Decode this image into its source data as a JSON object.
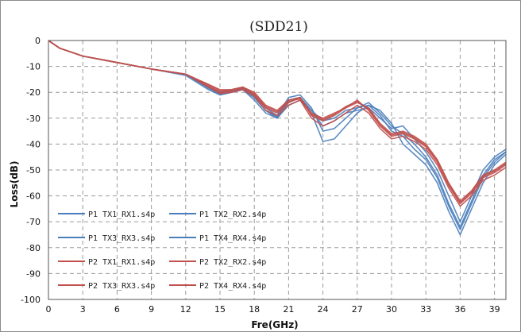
{
  "chart_data": {
    "type": "line",
    "title": "(SDD21)",
    "xlabel": "Fre(GHz)",
    "ylabel": "Loss(dB)",
    "xlim": [
      0,
      40
    ],
    "ylim": [
      -100,
      0
    ],
    "x_ticks": [
      0,
      3,
      6,
      9,
      12,
      15,
      18,
      21,
      24,
      27,
      30,
      33,
      36,
      39
    ],
    "y_ticks": [
      0,
      -10,
      -20,
      -30,
      -40,
      -50,
      -60,
      -70,
      -80,
      -90,
      -100
    ],
    "grid": true,
    "legend_position": "bottom-left",
    "series": [
      {
        "name": "P1 TX1_RX1.s4p",
        "color": "#4a7ebb",
        "x": [
          0,
          1,
          3,
          6,
          9,
          12,
          14,
          15,
          16,
          17,
          18,
          19,
          20,
          21,
          22,
          23,
          24,
          25,
          26,
          27,
          28,
          29,
          30,
          31,
          32,
          33,
          34,
          35,
          36,
          37,
          38,
          39,
          40
        ],
        "y": [
          0,
          -3,
          -6,
          -8.5,
          -11,
          -13,
          -18,
          -21,
          -20,
          -19,
          -22,
          -27,
          -30,
          -24,
          -22,
          -27,
          -33,
          -31,
          -28,
          -27,
          -26,
          -30,
          -34,
          -33,
          -38,
          -43,
          -50,
          -60,
          -70,
          -60,
          -50,
          -45,
          -42
        ]
      },
      {
        "name": "P1 TX2_RX2.s4p",
        "color": "#4a7ebb",
        "x": [
          0,
          1,
          3,
          6,
          9,
          12,
          14,
          15,
          16,
          17,
          18,
          19,
          20,
          21,
          22,
          23,
          24,
          25,
          26,
          27,
          28,
          29,
          30,
          31,
          32,
          33,
          34,
          35,
          36,
          37,
          38,
          39,
          40
        ],
        "y": [
          0,
          -3,
          -6,
          -8.5,
          -11,
          -13,
          -18,
          -20,
          -19,
          -18,
          -21,
          -26,
          -29,
          -22,
          -21,
          -26,
          -35,
          -34,
          -30,
          -26,
          -24,
          -28,
          -33,
          -36,
          -40,
          -45,
          -52,
          -63,
          -72,
          -62,
          -52,
          -46,
          -43
        ]
      },
      {
        "name": "P1 TX3_RX3.s4p",
        "color": "#4a7ebb",
        "x": [
          0,
          1,
          3,
          6,
          9,
          12,
          14,
          15,
          16,
          17,
          18,
          19,
          20,
          21,
          22,
          23,
          24,
          25,
          26,
          27,
          28,
          29,
          30,
          31,
          32,
          33,
          34,
          35,
          36,
          37,
          38,
          39,
          40
        ],
        "y": [
          0,
          -3,
          -6,
          -8.5,
          -11,
          -13.5,
          -19,
          -21,
          -20,
          -19,
          -23,
          -28,
          -30,
          -25,
          -23,
          -28,
          -39,
          -38,
          -33,
          -28,
          -25,
          -27,
          -32,
          -40,
          -44,
          -48,
          -55,
          -66,
          -75,
          -65,
          -55,
          -48,
          -44
        ]
      },
      {
        "name": "P1 TX4_RX4.s4p",
        "color": "#4a7ebb",
        "x": [
          0,
          1,
          3,
          6,
          9,
          12,
          14,
          15,
          16,
          17,
          18,
          19,
          20,
          21,
          22,
          23,
          24,
          25,
          26,
          27,
          28,
          29,
          30,
          31,
          32,
          33,
          34,
          35,
          36,
          37,
          38,
          39,
          40
        ],
        "y": [
          0,
          -3,
          -6,
          -8.5,
          -11,
          -13,
          -18.5,
          -20.5,
          -19.5,
          -18.5,
          -22,
          -27,
          -29.5,
          -23,
          -22,
          -27,
          -31,
          -30,
          -27,
          -26,
          -25,
          -29,
          -35,
          -37,
          -42,
          -46,
          -53,
          -64,
          -73,
          -63,
          -53,
          -47,
          -43
        ]
      },
      {
        "name": "P2 TX1_RX1.s4p",
        "color": "#c0504d",
        "x": [
          0,
          1,
          3,
          6,
          9,
          12,
          14,
          15,
          16,
          17,
          18,
          19,
          20,
          21,
          22,
          23,
          24,
          25,
          26,
          27,
          28,
          29,
          30,
          31,
          32,
          33,
          34,
          35,
          36,
          37,
          38,
          39,
          40
        ],
        "y": [
          0,
          -3,
          -6,
          -8.5,
          -11,
          -13,
          -17,
          -19,
          -19,
          -18,
          -20,
          -25,
          -27,
          -23,
          -22,
          -28,
          -30,
          -28,
          -26,
          -24,
          -26,
          -32,
          -36,
          -35,
          -37,
          -40,
          -46,
          -55,
          -62,
          -58,
          -52,
          -50,
          -47
        ]
      },
      {
        "name": "P2 TX2_RX2.s4p",
        "color": "#c0504d",
        "x": [
          0,
          1,
          3,
          6,
          9,
          12,
          14,
          15,
          16,
          17,
          18,
          19,
          20,
          21,
          22,
          23,
          24,
          25,
          26,
          27,
          28,
          29,
          30,
          31,
          32,
          33,
          34,
          35,
          36,
          37,
          38,
          39,
          40
        ],
        "y": [
          0,
          -3,
          -6,
          -8.5,
          -11,
          -13,
          -17.5,
          -20,
          -19.5,
          -18.5,
          -21,
          -26,
          -28,
          -24,
          -22,
          -29,
          -31,
          -29,
          -26,
          -23,
          -27,
          -33,
          -37,
          -36,
          -38,
          -41,
          -47,
          -56,
          -63,
          -59,
          -53,
          -51,
          -48
        ]
      },
      {
        "name": "P2 TX3_RX3.s4p",
        "color": "#c0504d",
        "x": [
          0,
          1,
          3,
          6,
          9,
          12,
          14,
          15,
          16,
          17,
          18,
          19,
          20,
          21,
          22,
          23,
          24,
          25,
          26,
          27,
          28,
          29,
          30,
          31,
          32,
          33,
          34,
          35,
          36,
          37,
          38,
          39,
          40
        ],
        "y": [
          0,
          -3,
          -6,
          -8.5,
          -11,
          -13,
          -18,
          -20.5,
          -20,
          -19,
          -21.5,
          -27,
          -29,
          -25,
          -23,
          -30,
          -33,
          -31,
          -28,
          -25,
          -28,
          -34,
          -38,
          -37,
          -39,
          -42,
          -48,
          -57,
          -64,
          -60,
          -54,
          -52,
          -49
        ]
      },
      {
        "name": "P2 TX4_RX4.s4p",
        "color": "#c0504d",
        "x": [
          0,
          1,
          3,
          6,
          9,
          12,
          14,
          15,
          16,
          17,
          18,
          19,
          20,
          21,
          22,
          23,
          24,
          25,
          26,
          27,
          28,
          29,
          30,
          31,
          32,
          33,
          34,
          35,
          36,
          37,
          38,
          39,
          40
        ],
        "y": [
          0,
          -3,
          -6,
          -8.5,
          -11,
          -13,
          -17,
          -19.5,
          -19,
          -18,
          -20.5,
          -25.5,
          -27.5,
          -23.5,
          -22.5,
          -28.5,
          -30.5,
          -28.5,
          -25.5,
          -23.5,
          -26.5,
          -32.5,
          -36.5,
          -35.5,
          -37.5,
          -40.5,
          -46.5,
          -55.5,
          -62.5,
          -58.5,
          -52.5,
          -50.5,
          -47.5
        ]
      }
    ]
  }
}
